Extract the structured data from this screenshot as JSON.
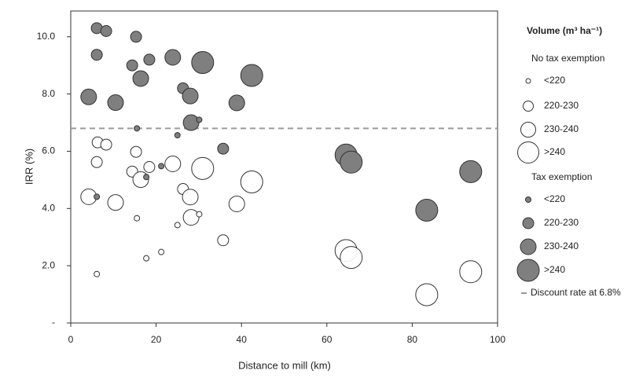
{
  "chart_data": {
    "type": "scatter",
    "x_label": "Distance to mill (km)",
    "y_label": "IRR (%)",
    "xlim": [
      0,
      100
    ],
    "xticks": [
      0,
      20,
      40,
      60,
      80,
      100
    ],
    "ylim": [
      0,
      10.9
    ],
    "yticks": [
      {
        "value": 0,
        "label": "-"
      },
      {
        "value": 2,
        "label": "2.0"
      },
      {
        "value": 4,
        "label": "4.0"
      },
      {
        "value": 6,
        "label": "6.0"
      },
      {
        "value": 8,
        "label": "8.0"
      },
      {
        "value": 10,
        "label": "10.0"
      }
    ],
    "legend_title": "Volume (m³ ha⁻¹)",
    "size_classes": [
      "<220",
      "220-230",
      "230-240",
      ">240"
    ],
    "series": [
      {
        "name": "No tax exemption",
        "color": "#ffffff",
        "x": [
          6.3,
          8.3,
          15.3,
          6.1,
          14.4,
          18.4,
          23.9,
          30.9,
          16.4,
          26.3,
          28,
          4.2,
          10.5,
          38.9,
          42.4,
          28.2,
          30.1,
          15.5,
          25,
          35.7,
          64.5,
          65.7,
          21.2,
          17.7,
          93.7,
          83.4,
          6.1
        ],
        "values": [
          6.31,
          6.23,
          5.98,
          5.62,
          5.29,
          5.45,
          5.56,
          5.4,
          5.01,
          4.68,
          4.4,
          4.41,
          4.21,
          4.16,
          4.93,
          3.69,
          3.8,
          3.66,
          3.42,
          2.89,
          2.53,
          2.29,
          2.48,
          2.26,
          1.79,
          0.99,
          1.71
        ],
        "sizes": [
          "220-230",
          "220-230",
          "220-230",
          "220-230",
          "220-230",
          "220-230",
          "230-240",
          ">240",
          "230-240",
          "220-230",
          "230-240",
          "230-240",
          "230-240",
          "230-240",
          ">240",
          "230-240",
          "<220",
          "<220",
          "<220",
          "220-230",
          ">240",
          ">240",
          "<220",
          "<220",
          ">240",
          ">240",
          "<220"
        ]
      },
      {
        "name": "Tax exemption",
        "color": "#7f7f7f",
        "x": [
          6.1,
          8.3,
          15.3,
          6.1,
          14.4,
          18.4,
          23.9,
          30.9,
          16.4,
          26.3,
          28,
          4.2,
          10.5,
          38.9,
          42.4,
          28.2,
          30.1,
          15.5,
          25,
          35.7,
          64.5,
          65.7,
          21.2,
          17.7,
          93.7,
          83.4,
          6.1
        ],
        "values": [
          10.3,
          10.2,
          10.0,
          9.37,
          9.0,
          9.2,
          9.28,
          9.1,
          8.54,
          8.2,
          7.93,
          7.9,
          7.7,
          7.69,
          8.65,
          7.0,
          7.1,
          6.8,
          6.56,
          6.09,
          5.87,
          5.62,
          5.48,
          5.1,
          5.29,
          3.94,
          4.41
        ],
        "sizes": [
          "220-230",
          "220-230",
          "220-230",
          "220-230",
          "220-230",
          "220-230",
          "230-240",
          ">240",
          "230-240",
          "220-230",
          "230-240",
          "230-240",
          "230-240",
          "230-240",
          ">240",
          "230-240",
          "<220",
          "<220",
          "<220",
          "220-230",
          ">240",
          ">240",
          "<220",
          "<220",
          ">240",
          ">240",
          "<220"
        ]
      }
    ],
    "reference_line": {
      "value": 6.8,
      "label": "Discount rate at 6.8%",
      "color": "#9a9a9a"
    }
  }
}
